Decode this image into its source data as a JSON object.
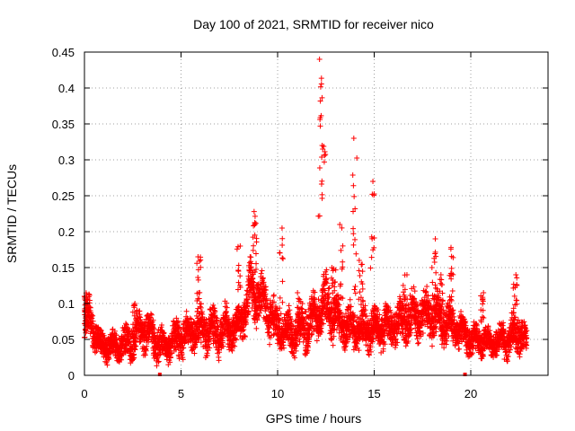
{
  "chart_data": {
    "type": "scatter",
    "title": "Day 100 of 2021, SRMTID for receiver nico",
    "xlabel": "GPS time / hours",
    "ylabel": "SRMTID / TECUs",
    "xlim": [
      0,
      24
    ],
    "ylim": [
      0,
      0.45
    ],
    "xticks": [
      0,
      5,
      10,
      15,
      20
    ],
    "xtick_labels": [
      "0",
      "5",
      "10",
      "15",
      "20"
    ],
    "yticks": [
      0,
      0.05,
      0.1,
      0.15,
      0.2,
      0.25,
      0.3,
      0.35,
      0.4,
      0.45
    ],
    "ytick_labels": [
      "0",
      "0.05",
      "0.1",
      "0.15",
      "0.2",
      "0.25",
      "0.3",
      "0.35",
      "0.4",
      "0.45"
    ],
    "grid": true,
    "marker": "plus",
    "series_color": "#ff0000",
    "gap_markers_x": [
      3.9,
      19.7
    ],
    "sample_interval_hours": 0.005,
    "envelope": [
      {
        "t": 0.0,
        "base": 0.07,
        "spread": 0.035
      },
      {
        "t": 0.3,
        "base": 0.08,
        "spread": 0.03
      },
      {
        "t": 0.8,
        "base": 0.04,
        "spread": 0.02
      },
      {
        "t": 2.0,
        "base": 0.042,
        "spread": 0.022
      },
      {
        "t": 2.6,
        "base": 0.05,
        "spread": 0.03
      },
      {
        "t": 3.0,
        "base": 0.07,
        "spread": 0.03
      },
      {
        "t": 3.6,
        "base": 0.05,
        "spread": 0.03
      },
      {
        "t": 4.2,
        "base": 0.04,
        "spread": 0.02
      },
      {
        "t": 5.0,
        "base": 0.055,
        "spread": 0.03
      },
      {
        "t": 6.0,
        "base": 0.065,
        "spread": 0.03
      },
      {
        "t": 7.0,
        "base": 0.06,
        "spread": 0.03
      },
      {
        "t": 8.0,
        "base": 0.07,
        "spread": 0.03
      },
      {
        "t": 8.6,
        "base": 0.12,
        "spread": 0.04
      },
      {
        "t": 9.3,
        "base": 0.1,
        "spread": 0.035
      },
      {
        "t": 10.0,
        "base": 0.065,
        "spread": 0.03
      },
      {
        "t": 11.0,
        "base": 0.06,
        "spread": 0.03
      },
      {
        "t": 12.0,
        "base": 0.08,
        "spread": 0.035
      },
      {
        "t": 12.5,
        "base": 0.1,
        "spread": 0.04
      },
      {
        "t": 13.3,
        "base": 0.07,
        "spread": 0.03
      },
      {
        "t": 14.0,
        "base": 0.065,
        "spread": 0.03
      },
      {
        "t": 15.0,
        "base": 0.065,
        "spread": 0.03
      },
      {
        "t": 16.0,
        "base": 0.07,
        "spread": 0.03
      },
      {
        "t": 17.0,
        "base": 0.08,
        "spread": 0.035
      },
      {
        "t": 18.0,
        "base": 0.085,
        "spread": 0.035
      },
      {
        "t": 19.0,
        "base": 0.07,
        "spread": 0.03
      },
      {
        "t": 20.0,
        "base": 0.05,
        "spread": 0.025
      },
      {
        "t": 21.0,
        "base": 0.045,
        "spread": 0.02
      },
      {
        "t": 22.0,
        "base": 0.05,
        "spread": 0.025
      },
      {
        "t": 22.5,
        "base": 0.065,
        "spread": 0.03
      },
      {
        "t": 22.9,
        "base": 0.045,
        "spread": 0.02
      }
    ],
    "spikes": [
      {
        "t": 0.1,
        "peak": 0.11
      },
      {
        "t": 2.6,
        "peak": 0.1
      },
      {
        "t": 5.9,
        "peak": 0.165
      },
      {
        "t": 8.0,
        "peak": 0.18
      },
      {
        "t": 8.8,
        "peak": 0.228
      },
      {
        "t": 10.2,
        "peak": 0.205
      },
      {
        "t": 11.1,
        "peak": 0.115
      },
      {
        "t": 12.2,
        "peak": 0.44
      },
      {
        "t": 12.4,
        "peak": 0.32
      },
      {
        "t": 12.9,
        "peak": 0.15
      },
      {
        "t": 13.3,
        "peak": 0.21
      },
      {
        "t": 14.0,
        "peak": 0.33
      },
      {
        "t": 14.3,
        "peak": 0.16
      },
      {
        "t": 14.9,
        "peak": 0.27
      },
      {
        "t": 16.6,
        "peak": 0.14
      },
      {
        "t": 18.1,
        "peak": 0.19
      },
      {
        "t": 18.5,
        "peak": 0.14
      },
      {
        "t": 19.0,
        "peak": 0.178
      },
      {
        "t": 20.6,
        "peak": 0.115
      },
      {
        "t": 22.3,
        "peak": 0.14
      }
    ]
  }
}
